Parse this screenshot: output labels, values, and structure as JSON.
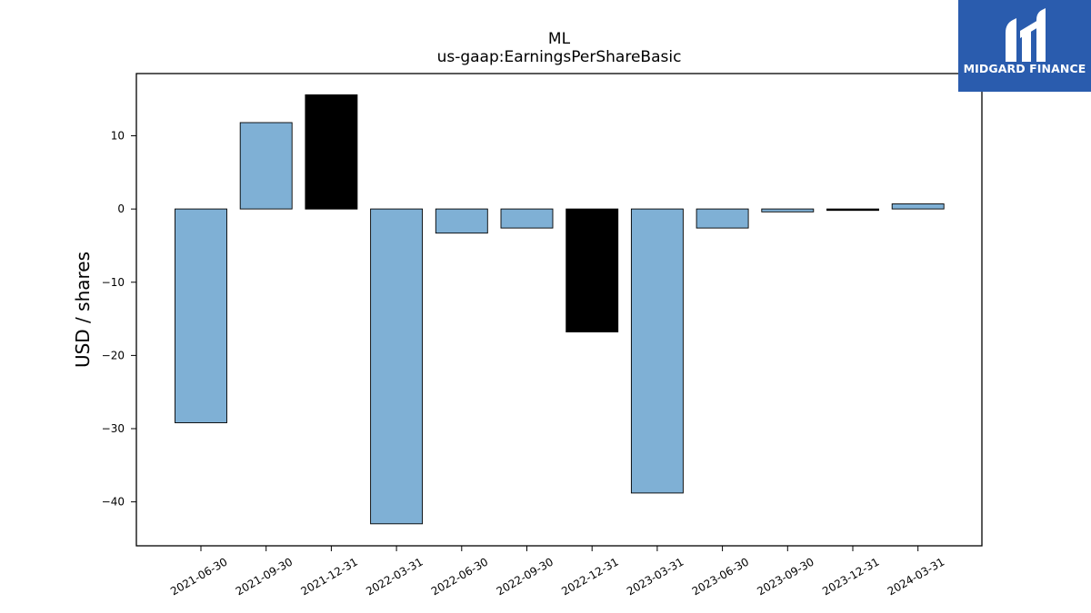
{
  "brand": {
    "name": "MIDGARD FINANCE",
    "color": "#2a5cae",
    "icon": "midgard-logo-icon"
  },
  "chart_data": {
    "type": "bar",
    "title": "ML",
    "subtitle": "us-gaap:EarningsPerShareBasic",
    "xlabel": "",
    "ylabel": "USD / shares",
    "categories": [
      "2021-06-30",
      "2021-09-30",
      "2021-12-31",
      "2022-03-31",
      "2022-06-30",
      "2022-09-30",
      "2022-12-31",
      "2023-03-31",
      "2023-06-30",
      "2023-09-30",
      "2023-12-31",
      "2024-03-31"
    ],
    "values": [
      -29.2,
      11.8,
      15.6,
      -43.0,
      -3.3,
      -2.6,
      -16.8,
      -38.8,
      -2.6,
      -0.4,
      -0.2,
      0.7
    ],
    "bar_colors": [
      "#7fb0d5",
      "#7fb0d5",
      "#000000",
      "#7fb0d5",
      "#7fb0d5",
      "#7fb0d5",
      "#000000",
      "#7fb0d5",
      "#7fb0d5",
      "#7fb0d5",
      "#000000",
      "#7fb0d5"
    ],
    "ylim": [
      -46,
      18.5
    ],
    "yticks": [
      10,
      0,
      -10,
      -20,
      -30,
      -40
    ],
    "ytick_labels": [
      "10",
      "0",
      "−10",
      "−20",
      "−30",
      "−40"
    ],
    "grid": false,
    "legend": "none"
  }
}
